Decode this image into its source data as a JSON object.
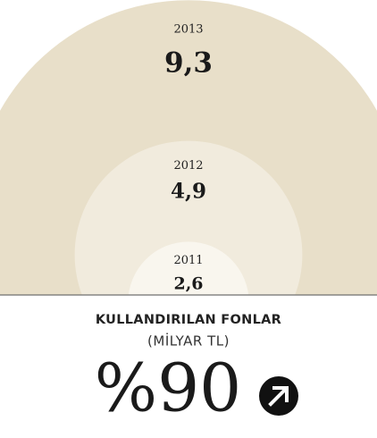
{
  "chart_data": {
    "type": "nested-circles",
    "title": "KULLANDIRILAN FONLAR",
    "subtitle": "(MİLYAR TL)",
    "annotation": "%90",
    "categories": [
      "2011",
      "2012",
      "2013"
    ],
    "values": [
      2.6,
      4.9,
      9.3
    ],
    "value_labels": [
      "2,6",
      "4,9",
      "9,3"
    ],
    "colors": [
      "#f9f6ee",
      "#f1ebdd",
      "#e8dfc9"
    ]
  }
}
